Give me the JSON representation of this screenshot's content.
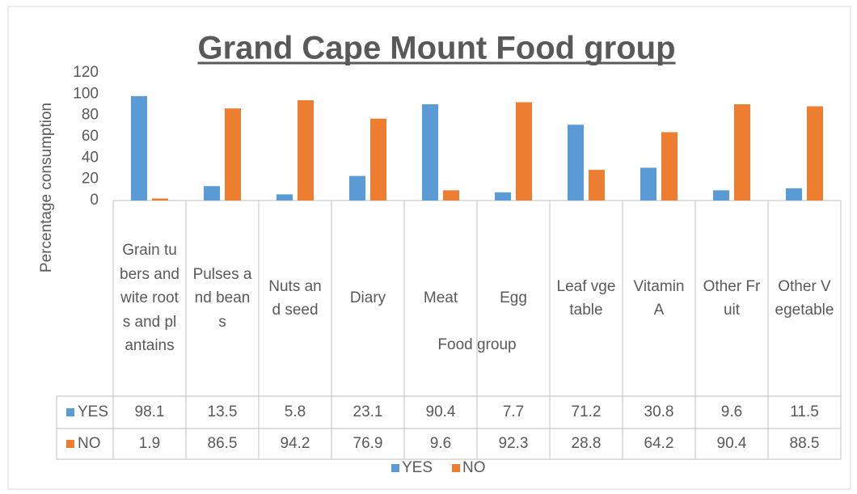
{
  "chart_data": {
    "type": "bar",
    "title": "Grand Cape Mount Food group",
    "x_label": "Food group",
    "y_label": "Percentage consumption",
    "categories": [
      "Grain tubers and wite roots and plantains",
      "Pulses and beans",
      "Nuts and seed",
      "Diary",
      "Meat",
      "Egg",
      "Leaf vgetable",
      "Vitamin A",
      "Other Fruit",
      "Other Vegetable"
    ],
    "series": [
      {
        "name": "YES",
        "color": "#5b9bd5",
        "values": [
          98.1,
          13.5,
          5.8,
          23.1,
          90.4,
          7.7,
          71.2,
          30.8,
          9.6,
          11.5
        ]
      },
      {
        "name": "NO",
        "color": "#ed7d31",
        "values": [
          1.9,
          86.5,
          94.2,
          76.9,
          9.6,
          92.3,
          28.8,
          64.2,
          90.4,
          88.5
        ]
      }
    ],
    "ylim": [
      0,
      120
    ],
    "yticks": [
      0,
      20,
      40,
      60,
      80,
      100,
      120
    ],
    "grid": false,
    "legend": "bottom",
    "data_table": true
  }
}
